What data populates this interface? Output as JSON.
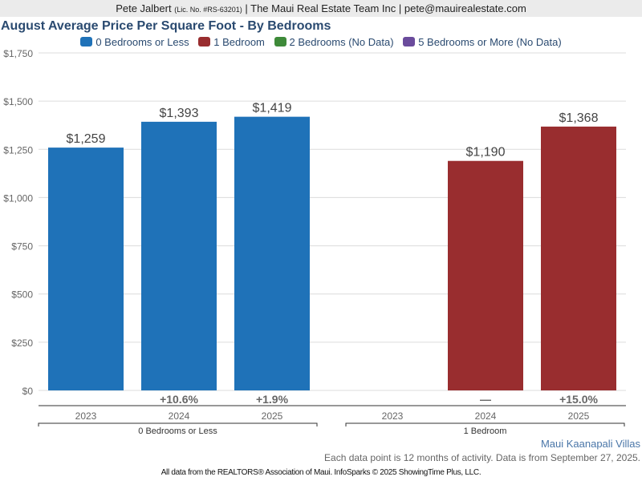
{
  "header": {
    "agent_name": "Pete Jalbert",
    "license": "(Lic. No. #RS-63201)",
    "rest": "| The Maui Real Estate Team Inc | pete@mauirealestate.com"
  },
  "footer": {
    "place": "Maui Kaanapali Villas",
    "note": "Each data point is 12 months of activity. Data is from September 27, 2025.",
    "source": "All data from the REALTORS® Association of Maui. InfoSparks © 2025 ShowingTime Plus, LLC."
  },
  "legend": [
    {
      "label": "0 Bedrooms or Less",
      "color": "#1f72b8"
    },
    {
      "label": "1 Bedroom",
      "color": "#992d2f"
    },
    {
      "label": "2 Bedrooms (No Data)",
      "color": "#3e8a39"
    },
    {
      "label": "5 Bedrooms or More (No Data)",
      "color": "#6a4b9c"
    }
  ],
  "chart_data": {
    "type": "bar",
    "title": "August Average Price Per Square Foot - By Bedrooms",
    "xlabel": "",
    "ylabel": "",
    "ylim": [
      0,
      1750
    ],
    "yticks": [
      0,
      250,
      500,
      750,
      1000,
      1250,
      1500,
      1750
    ],
    "ytick_labels": [
      "$0",
      "$250",
      "$500",
      "$750",
      "$1,000",
      "$1,250",
      "$1,500",
      "$1,750"
    ],
    "grid": true,
    "legend_position": "top-center",
    "groups": [
      {
        "name": "0 Bedrooms or Less",
        "color": "#1f72b8",
        "categories": [
          "2023",
          "2024",
          "2025"
        ],
        "values": [
          1259,
          1393,
          1419
        ],
        "value_labels": [
          "$1,259",
          "$1,393",
          "$1,419"
        ],
        "changes": [
          "",
          "+10.6%",
          "+1.9%"
        ]
      },
      {
        "name": "1 Bedroom",
        "color": "#992d2f",
        "categories": [
          "2023",
          "2024",
          "2025"
        ],
        "values": [
          null,
          1190,
          1368
        ],
        "value_labels": [
          "",
          "$1,190",
          "$1,368"
        ],
        "changes": [
          "",
          "—",
          "+15.0%"
        ]
      }
    ]
  }
}
